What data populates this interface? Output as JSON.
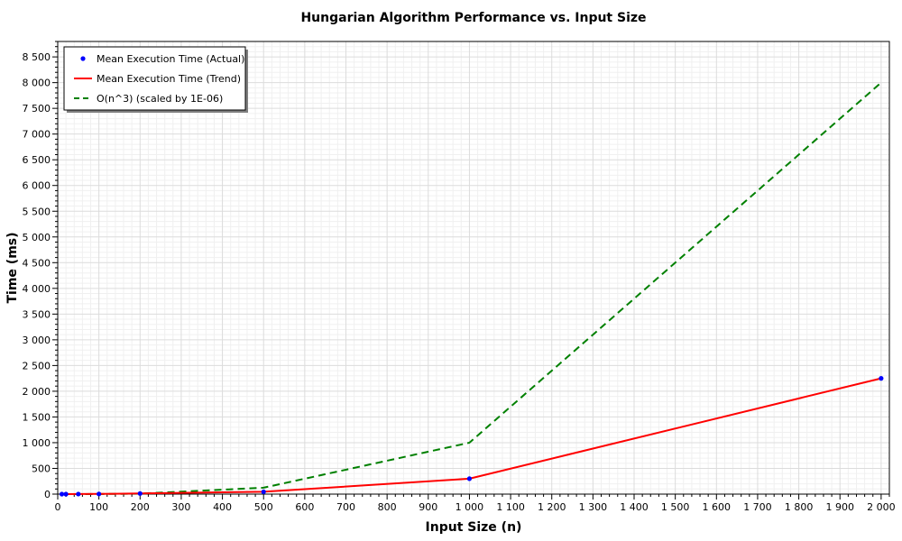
{
  "chart_data": {
    "type": "line",
    "title": "Hungarian Algorithm Performance vs. Input Size",
    "xlabel": "Input Size (n)",
    "ylabel": "Time (ms)",
    "xlim": [
      0,
      2020
    ],
    "ylim": [
      0,
      8800
    ],
    "x_ticks": [
      0,
      100,
      200,
      300,
      400,
      500,
      600,
      700,
      800,
      900,
      1000,
      1100,
      1200,
      1300,
      1400,
      1500,
      1600,
      1700,
      1800,
      1900,
      2000
    ],
    "x_tick_labels": [
      "0",
      "100",
      "200",
      "300",
      "400",
      "500",
      "600",
      "700",
      "800",
      "900",
      "1 000",
      "1 100",
      "1 200",
      "1 300",
      "1 400",
      "1 500",
      "1 600",
      "1 700",
      "1 800",
      "1 900",
      "2 000"
    ],
    "y_ticks": [
      0,
      500,
      1000,
      1500,
      2000,
      2500,
      3000,
      3500,
      4000,
      4500,
      5000,
      5500,
      6000,
      6500,
      7000,
      7500,
      8000,
      8500
    ],
    "y_tick_labels": [
      "0",
      "500",
      "1 000",
      "1 500",
      "2 000",
      "2 500",
      "3 000",
      "3 500",
      "4 000",
      "4 500",
      "5 000",
      "5 500",
      "6 000",
      "6 500",
      "7 000",
      "7 500",
      "8 000",
      "8 500"
    ],
    "grid": true,
    "legend_position": "top-left",
    "series": [
      {
        "name": "Mean Execution Time (Actual)",
        "style": "markers",
        "color": "#0000FF",
        "x": [
          10,
          20,
          50,
          100,
          200,
          500,
          1000,
          2000
        ],
        "y": [
          0.1,
          0.3,
          1,
          3,
          12,
          45,
          300,
          2250
        ]
      },
      {
        "name": "Mean Execution Time (Trend)",
        "style": "solid",
        "color": "#FF0000",
        "x": [
          10,
          20,
          50,
          100,
          200,
          500,
          1000,
          2000
        ],
        "y": [
          0.1,
          0.3,
          1,
          3,
          12,
          45,
          300,
          2250
        ]
      },
      {
        "name": "O(n^3) (scaled by 1E-06)",
        "style": "dashed",
        "color": "#008000",
        "x": [
          10,
          20,
          50,
          100,
          200,
          500,
          1000,
          2000
        ],
        "y": [
          0.001,
          0.008,
          0.125,
          1,
          8,
          125,
          1000,
          8000
        ]
      }
    ]
  }
}
